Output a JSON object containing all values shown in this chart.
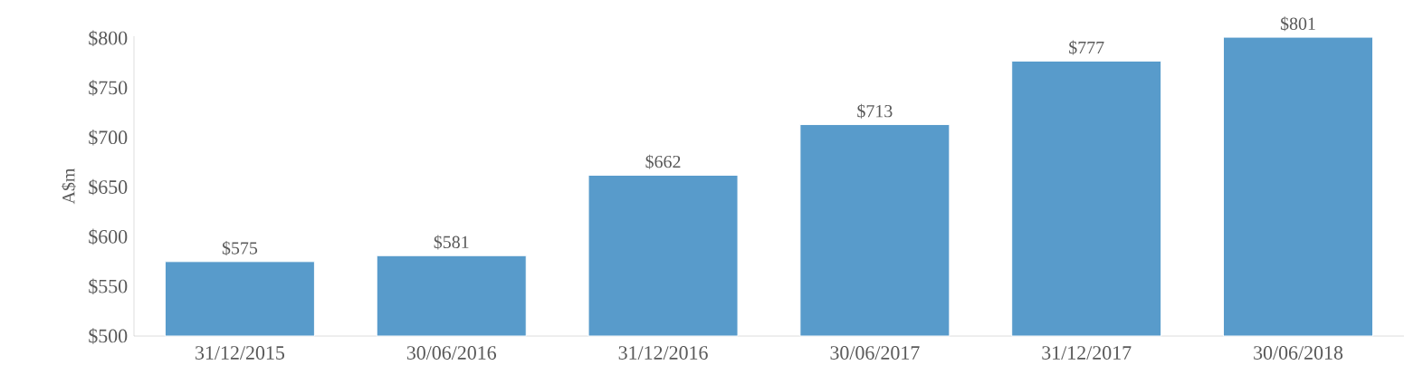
{
  "chart_data": {
    "type": "bar",
    "ylabel": "A$m",
    "categories": [
      "31/12/2015",
      "30/06/2016",
      "31/12/2016",
      "30/06/2017",
      "31/12/2017",
      "30/06/2018"
    ],
    "values": [
      575,
      581,
      662,
      713,
      777,
      801
    ],
    "value_labels": [
      "$575",
      "$581",
      "$662",
      "$713",
      "$777",
      "$801"
    ],
    "color": "#589bcb",
    "ylim": [
      500,
      802
    ],
    "yticks": [
      {
        "value": 500,
        "label": "$500"
      },
      {
        "value": 550,
        "label": "$550"
      },
      {
        "value": 600,
        "label": "$600"
      },
      {
        "value": 650,
        "label": "$650"
      },
      {
        "value": 700,
        "label": "$700"
      },
      {
        "value": 750,
        "label": "$750"
      },
      {
        "value": 800,
        "label": "$800"
      }
    ]
  }
}
